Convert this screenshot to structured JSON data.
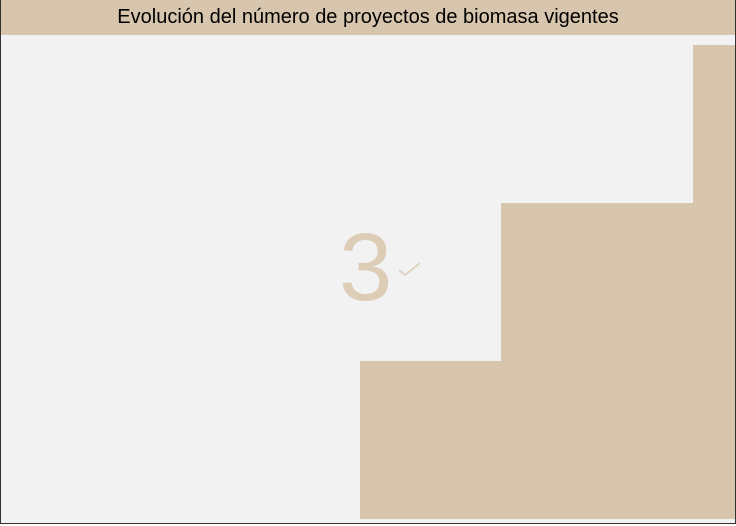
{
  "title": "Evolución del número de proyectos de biomasa vigentes",
  "counter": "3"
}
